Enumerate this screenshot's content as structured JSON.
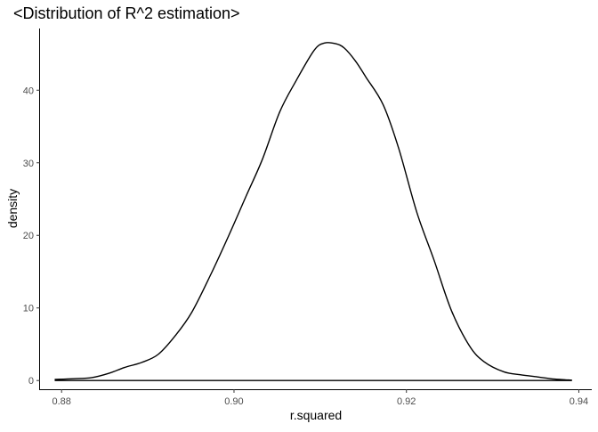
{
  "chart_data": {
    "type": "line",
    "title": "<Distribution of R^2 estimation>",
    "xlabel": "r.squared",
    "ylabel": "density",
    "xlim": [
      0.8775,
      0.9415
    ],
    "ylim": [
      -1.2,
      48.5
    ],
    "x_ticks": [
      0.88,
      0.9,
      0.92,
      0.94
    ],
    "x_tick_labels": [
      "0.88",
      "0.90",
      "0.92",
      "0.94"
    ],
    "y_ticks": [
      0,
      10,
      20,
      30,
      40
    ],
    "y_tick_labels": [
      "0",
      "10",
      "20",
      "30",
      "40"
    ],
    "grid": false,
    "legend": "none",
    "line_color": "#000000",
    "series": [
      {
        "x": [
          0.8792,
          0.8814,
          0.8835,
          0.8855,
          0.8873,
          0.8893,
          0.8912,
          0.8932,
          0.8951,
          0.8973,
          0.8994,
          0.9014,
          0.9033,
          0.9053,
          0.9072,
          0.9093,
          0.9105,
          0.9118,
          0.9128,
          0.9141,
          0.9153,
          0.9173,
          0.9191,
          0.9212,
          0.9232,
          0.9252,
          0.9273,
          0.929,
          0.9313,
          0.9332,
          0.9352,
          0.9372,
          0.9392
        ],
        "y": [
          0.15,
          0.25,
          0.4,
          1.0,
          1.8,
          2.5,
          3.6,
          6.2,
          9.4,
          14.6,
          20.0,
          25.4,
          30.5,
          37.0,
          41.3,
          45.5,
          46.5,
          46.4,
          45.8,
          44.0,
          41.8,
          38.0,
          32.0,
          23.2,
          16.6,
          9.7,
          4.8,
          2.6,
          1.2,
          0.8,
          0.5,
          0.2,
          0.05
        ]
      }
    ]
  }
}
